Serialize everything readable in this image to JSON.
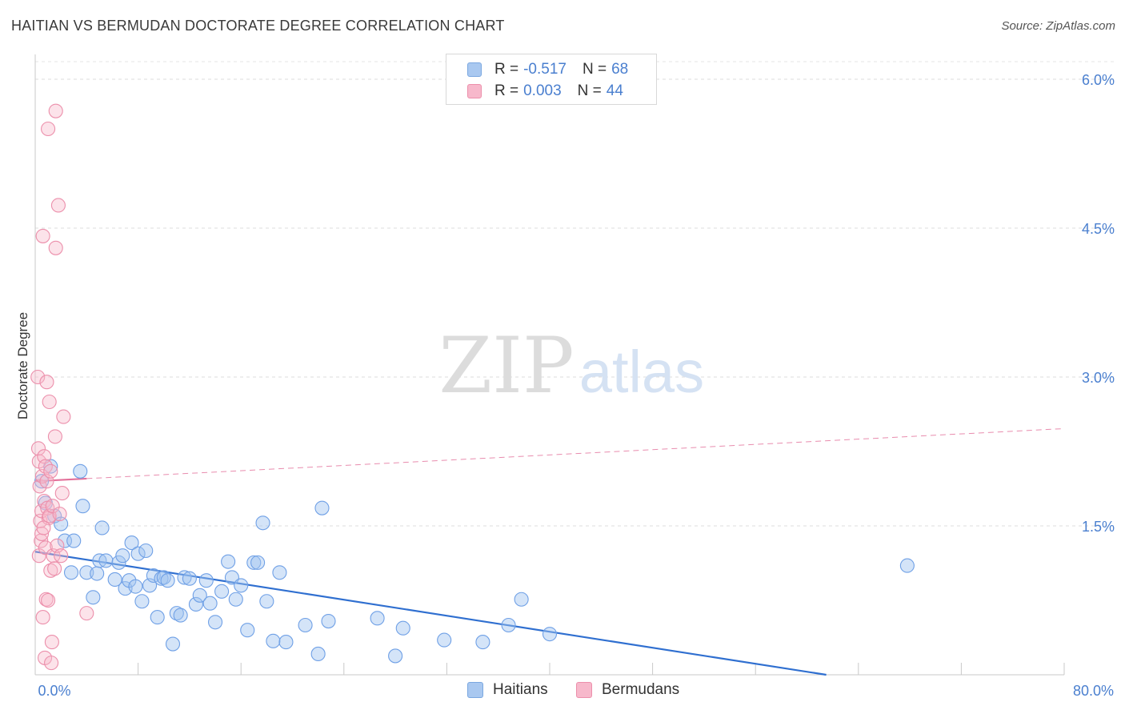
{
  "title": "HAITIAN VS BERMUDAN DOCTORATE DEGREE CORRELATION CHART",
  "source": "Source: ZipAtlas.com",
  "watermark": {
    "zip": "ZIP",
    "atlas": "atlas"
  },
  "legend": {
    "rows": [
      {
        "r_label": "R =",
        "r_value": "-0.517",
        "n_label": "N =",
        "n_value": "68",
        "color": "#a9c8f0",
        "border": "#7aa7e0"
      },
      {
        "r_label": "R =",
        "r_value": "0.003",
        "n_label": "N =",
        "n_value": "44",
        "color": "#f7b8cb",
        "border": "#ec8fab"
      }
    ]
  },
  "bottom_legend": [
    {
      "label": "Haitians",
      "color": "#a9c8f0",
      "border": "#7aa7e0"
    },
    {
      "label": "Bermudans",
      "color": "#f7b8cb",
      "border": "#ec8fab"
    }
  ],
  "chart_data": {
    "type": "scatter",
    "title": "HAITIAN VS BERMUDAN DOCTORATE DEGREE CORRELATION CHART",
    "xlabel": "",
    "ylabel": "Doctorate Degree",
    "xlim": [
      0,
      80
    ],
    "ylim": [
      0,
      6.25
    ],
    "x_tick_labels": [
      "0.0%",
      "80.0%"
    ],
    "y_ticks": [
      1.5,
      3.0,
      4.5,
      6.0
    ],
    "y_tick_labels": [
      "1.5%",
      "3.0%",
      "4.5%",
      "6.0%"
    ],
    "grid": true,
    "series": [
      {
        "name": "Haitians",
        "color": "#6fa0e6",
        "fill": "rgba(160,195,240,0.45)",
        "trend": {
          "x": [
            0,
            61.5
          ],
          "y": [
            1.24,
            0.0
          ],
          "style": "solid",
          "color": "#2f6fd0"
        },
        "points": [
          [
            0.5,
            1.95
          ],
          [
            0.8,
            1.73
          ],
          [
            1.2,
            2.1
          ],
          [
            1.5,
            1.6
          ],
          [
            2.0,
            1.52
          ],
          [
            2.3,
            1.35
          ],
          [
            2.8,
            1.03
          ],
          [
            3.0,
            1.35
          ],
          [
            3.5,
            2.05
          ],
          [
            3.7,
            1.7
          ],
          [
            4.0,
            1.03
          ],
          [
            4.5,
            0.78
          ],
          [
            4.8,
            1.02
          ],
          [
            5.0,
            1.15
          ],
          [
            5.2,
            1.48
          ],
          [
            5.5,
            1.15
          ],
          [
            6.2,
            0.96
          ],
          [
            6.5,
            1.13
          ],
          [
            6.8,
            1.2
          ],
          [
            7.0,
            0.87
          ],
          [
            7.3,
            0.95
          ],
          [
            7.5,
            1.33
          ],
          [
            7.8,
            0.89
          ],
          [
            8.0,
            1.22
          ],
          [
            8.3,
            0.74
          ],
          [
            8.6,
            1.25
          ],
          [
            8.9,
            0.9
          ],
          [
            9.2,
            1.0
          ],
          [
            9.5,
            0.58
          ],
          [
            9.8,
            0.97
          ],
          [
            10.0,
            0.98
          ],
          [
            10.3,
            0.95
          ],
          [
            10.7,
            0.31
          ],
          [
            11.0,
            0.62
          ],
          [
            11.3,
            0.6
          ],
          [
            11.6,
            0.98
          ],
          [
            12.0,
            0.97
          ],
          [
            12.5,
            0.71
          ],
          [
            12.8,
            0.8
          ],
          [
            13.3,
            0.95
          ],
          [
            13.6,
            0.72
          ],
          [
            14.0,
            0.53
          ],
          [
            14.5,
            0.84
          ],
          [
            15.0,
            1.14
          ],
          [
            15.3,
            0.98
          ],
          [
            15.6,
            0.76
          ],
          [
            16.0,
            0.9
          ],
          [
            16.5,
            0.45
          ],
          [
            17.0,
            1.13
          ],
          [
            17.3,
            1.13
          ],
          [
            17.7,
            1.53
          ],
          [
            18.0,
            0.74
          ],
          [
            18.5,
            0.34
          ],
          [
            19.0,
            1.03
          ],
          [
            19.5,
            0.33
          ],
          [
            21.0,
            0.5
          ],
          [
            22.0,
            0.21
          ],
          [
            22.3,
            1.68
          ],
          [
            22.8,
            0.54
          ],
          [
            26.6,
            0.57
          ],
          [
            28.0,
            0.19
          ],
          [
            28.6,
            0.47
          ],
          [
            31.8,
            0.35
          ],
          [
            34.8,
            0.33
          ],
          [
            36.8,
            0.5
          ],
          [
            37.8,
            0.76
          ],
          [
            40.0,
            0.41
          ],
          [
            67.8,
            1.1
          ]
        ]
      },
      {
        "name": "Bermudans",
        "color": "#ec8fab",
        "fill": "rgba(247,184,203,0.40)",
        "trend": {
          "x": [
            0,
            80
          ],
          "y": [
            1.95,
            2.48
          ],
          "solid_until_x": 4.0,
          "style": "dashed",
          "color": "#e3709a"
        },
        "points": [
          [
            0.2,
            3.0
          ],
          [
            0.25,
            2.28
          ],
          [
            0.3,
            2.15
          ],
          [
            0.3,
            1.2
          ],
          [
            0.35,
            1.9
          ],
          [
            0.4,
            1.55
          ],
          [
            0.45,
            1.35
          ],
          [
            0.5,
            1.65
          ],
          [
            0.5,
            1.42
          ],
          [
            0.55,
            2.0
          ],
          [
            0.6,
            0.58
          ],
          [
            0.6,
            4.42
          ],
          [
            0.7,
            2.2
          ],
          [
            0.7,
            1.75
          ],
          [
            0.75,
            0.17
          ],
          [
            0.8,
            2.1
          ],
          [
            0.8,
            1.28
          ],
          [
            0.85,
            0.76
          ],
          [
            0.9,
            2.95
          ],
          [
            0.9,
            1.95
          ],
          [
            0.95,
            1.68
          ],
          [
            1.0,
            0.75
          ],
          [
            1.0,
            5.5
          ],
          [
            1.05,
            1.58
          ],
          [
            1.1,
            2.75
          ],
          [
            1.1,
            1.6
          ],
          [
            1.2,
            1.05
          ],
          [
            1.2,
            2.05
          ],
          [
            1.25,
            0.12
          ],
          [
            1.3,
            0.33
          ],
          [
            1.35,
            1.7
          ],
          [
            1.4,
            1.2
          ],
          [
            1.5,
            1.07
          ],
          [
            1.55,
            2.4
          ],
          [
            1.6,
            5.68
          ],
          [
            1.6,
            4.3
          ],
          [
            1.7,
            1.3
          ],
          [
            1.8,
            4.73
          ],
          [
            1.9,
            1.62
          ],
          [
            2.0,
            1.2
          ],
          [
            2.1,
            1.83
          ],
          [
            2.2,
            2.6
          ],
          [
            4.0,
            0.62
          ],
          [
            0.65,
            1.48
          ]
        ]
      }
    ]
  }
}
